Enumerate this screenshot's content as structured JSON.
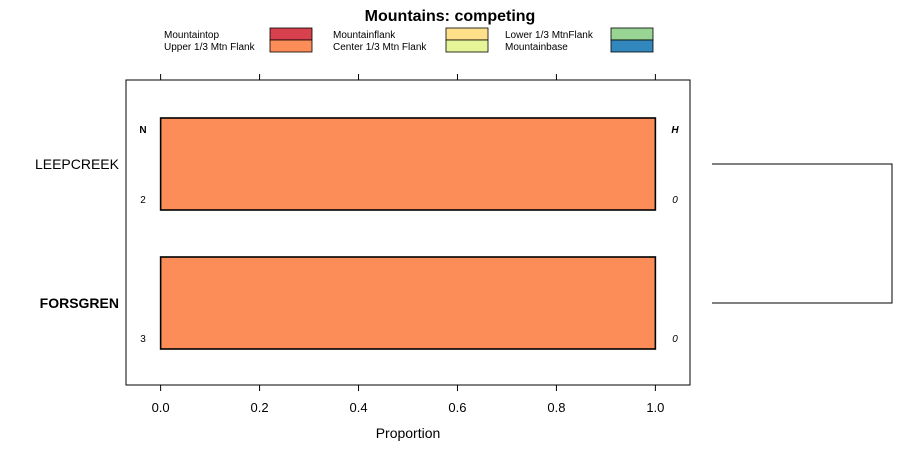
{
  "chart_data": {
    "type": "bar",
    "orientation": "horizontal",
    "stacked": true,
    "title": "Mountains: competing",
    "xlabel": "Proportion",
    "ylabel": "",
    "xlim": [
      -0.07,
      1.07
    ],
    "xticks": [
      "0.0",
      "0.2",
      "0.4",
      "0.6",
      "0.8",
      "1.0"
    ],
    "legend": [
      {
        "name": "Mountaintop",
        "color": "#d7414e"
      },
      {
        "name": "Mountainflank",
        "color": "#fee08b"
      },
      {
        "name": "Lower 1/3 MtnFlank",
        "color": "#98d594"
      },
      {
        "name": "Upper 1/3 Mtn Flank",
        "color": "#fc8d59"
      },
      {
        "name": "Center 1/3 Mtn Flank",
        "color": "#e6f598"
      },
      {
        "name": "Mountainbase",
        "color": "#3288bd"
      }
    ],
    "categories": [
      {
        "label": "LEEPCREEK",
        "bold": false,
        "n": "2",
        "h": "0",
        "segments": [
          {
            "series": "Upper 1/3 Mtn Flank",
            "value": 1.0
          }
        ]
      },
      {
        "label": "FORSGREN",
        "bold": true,
        "n": "3",
        "h": "0",
        "segments": [
          {
            "series": "Upper 1/3 Mtn Flank",
            "value": 1.0
          }
        ]
      }
    ],
    "column_headers": {
      "left": "N",
      "right": "H"
    },
    "dendrogram": true,
    "grid": false
  }
}
